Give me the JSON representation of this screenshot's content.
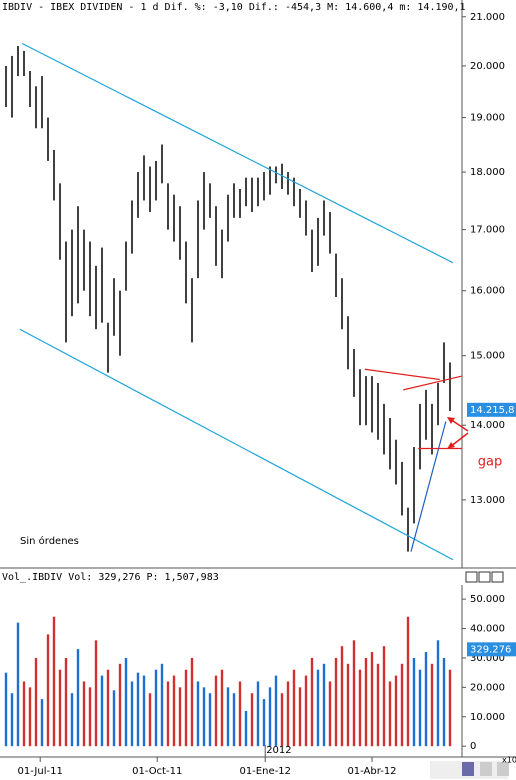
{
  "chart_data": [
    {
      "type": "ohlc",
      "title": "IBDIV - IBEX DIVIDEN - 1 d Dif. %: -3,10 Dif.: -454,3 M: 14.600,4 m: 14.190,1",
      "log_scale": true,
      "color": "#000000",
      "x": [
        1,
        2,
        3,
        4,
        5,
        6,
        7,
        8,
        9,
        10,
        11,
        12,
        13,
        14,
        15,
        16,
        17,
        18,
        19,
        20,
        21,
        22,
        23,
        24,
        25,
        26,
        27,
        28,
        29,
        30,
        31,
        32,
        33,
        34,
        35,
        36,
        37,
        38,
        39,
        40,
        41,
        42,
        43,
        44,
        45,
        46,
        47,
        48,
        49,
        50,
        51,
        52,
        53,
        54,
        55,
        56,
        57,
        58,
        59,
        60,
        61,
        62,
        63,
        64,
        65,
        66,
        67,
        68,
        69,
        70,
        71,
        72,
        73,
        74,
        75
      ],
      "low": [
        19200,
        19000,
        19800,
        19800,
        19200,
        18800,
        18800,
        18200,
        17500,
        16500,
        15200,
        15600,
        15800,
        16000,
        15600,
        15400,
        15500,
        14750,
        15300,
        15000,
        16000,
        16600,
        17200,
        17500,
        17300,
        17500,
        17800,
        17000,
        16800,
        16500,
        15800,
        15200,
        16200,
        17000,
        17200,
        16400,
        16200,
        16800,
        17200,
        17200,
        17400,
        17300,
        17400,
        17500,
        17600,
        17800,
        17700,
        17600,
        17400,
        17200,
        16900,
        16300,
        16400,
        16900,
        16600,
        15900,
        15400,
        14800,
        14400,
        14000,
        14000,
        13900,
        13800,
        13600,
        13400,
        13200,
        12800,
        12350,
        12700,
        13400,
        13800,
        13600,
        14000,
        14600,
        14200
      ],
      "high": [
        20000,
        20200,
        20400,
        20300,
        19900,
        19600,
        19800,
        19000,
        18400,
        17800,
        16800,
        17000,
        17400,
        17000,
        16800,
        16400,
        16700,
        15500,
        16200,
        16000,
        16800,
        17500,
        18000,
        18300,
        18100,
        18200,
        18500,
        17800,
        17600,
        17400,
        16800,
        16200,
        17500,
        18000,
        17800,
        17400,
        17000,
        17600,
        17800,
        17700,
        17900,
        17900,
        17900,
        18000,
        18100,
        18100,
        18150,
        18000,
        17900,
        17700,
        17500,
        17000,
        17200,
        17500,
        17300,
        16600,
        16200,
        15600,
        15100,
        14800,
        14700,
        14700,
        14600,
        14300,
        14100,
        13800,
        13500,
        12900,
        13700,
        14300,
        14500,
        14300,
        14600,
        15200,
        14900
      ],
      "xlim": [
        0,
        77
      ],
      "ylim": [
        12150,
        21100
      ],
      "yticks": [
        {
          "value": 13000,
          "label": "13.000"
        },
        {
          "value": 14000,
          "label": "14.000"
        },
        {
          "value": 15000,
          "label": "15.000"
        },
        {
          "value": 16000,
          "label": "16.000"
        },
        {
          "value": 17000,
          "label": "17.000"
        },
        {
          "value": 18000,
          "label": "18.000"
        },
        {
          "value": 19000,
          "label": "19.000"
        },
        {
          "value": 20000,
          "label": "20.000"
        },
        {
          "value": 21000,
          "label": "21.000"
        }
      ],
      "last_value": {
        "value": 14215.8,
        "label": "14.215,8"
      },
      "trendlines": [
        {
          "x": [
            3.7,
            75.5
          ],
          "y": [
            20450,
            16450
          ],
          "color": "#1aa3d9"
        },
        {
          "x": [
            3.3,
            75.5
          ],
          "y": [
            15400,
            12250
          ],
          "color": "#1aa3d9"
        },
        {
          "x": [
            68.5,
            74.3
          ],
          "y": [
            12350,
            14050
          ],
          "color": "#1f5fbf"
        },
        {
          "x": [
            60.8,
            73.3
          ],
          "y": [
            14800,
            14650
          ],
          "color": "#e02020"
        },
        {
          "x": [
            67.2,
            77
          ],
          "y": [
            14500,
            14700
          ],
          "color": "#e02020"
        },
        {
          "x": [
            69.7,
            77
          ],
          "y": [
            13680,
            13680
          ],
          "color": "#e02020"
        }
      ],
      "annotations": [
        "gap",
        "Sin órdenes"
      ]
    },
    {
      "type": "bar",
      "title": "Vol_.IBDIV Vol: 329,276 P: 1,507,983",
      "up_color": "#1f6fd0",
      "down_color": "#d03030",
      "x": [
        1,
        2,
        3,
        4,
        5,
        6,
        7,
        8,
        9,
        10,
        11,
        12,
        13,
        14,
        15,
        16,
        17,
        18,
        19,
        20,
        21,
        22,
        23,
        24,
        25,
        26,
        27,
        28,
        29,
        30,
        31,
        32,
        33,
        34,
        35,
        36,
        37,
        38,
        39,
        40,
        41,
        42,
        43,
        44,
        45,
        46,
        47,
        48,
        49,
        50,
        51,
        52,
        53,
        54,
        55,
        56,
        57,
        58,
        59,
        60,
        61,
        62,
        63,
        64,
        65,
        66,
        67,
        68,
        69,
        70,
        71,
        72,
        73,
        74,
        75
      ],
      "values": [
        25000,
        18000,
        42000,
        22000,
        20000,
        30000,
        16000,
        38000,
        44000,
        26000,
        30000,
        18000,
        33000,
        22000,
        20000,
        36000,
        24000,
        26000,
        19000,
        28000,
        30000,
        22000,
        25000,
        24000,
        18000,
        26000,
        28000,
        22000,
        24000,
        20000,
        26000,
        30000,
        22000,
        20000,
        18000,
        24000,
        26000,
        20000,
        18000,
        22000,
        12000,
        18000,
        22000,
        16000,
        20000,
        24000,
        18000,
        22000,
        26000,
        20000,
        24000,
        30000,
        26000,
        28000,
        22000,
        30000,
        34000,
        28000,
        36000,
        26000,
        30000,
        32000,
        28000,
        34000,
        22000,
        24000,
        28000,
        44000,
        30000,
        26000,
        32000,
        28000,
        36000,
        30000,
        26000
      ],
      "xlim": [
        0,
        77
      ],
      "ylim": [
        -3000,
        54800
      ],
      "yticks": [
        0,
        {
          "value": 10000,
          "label": "10.000"
        },
        {
          "value": 20000,
          "label": "20.000"
        },
        {
          "value": 30000,
          "label": "30.000"
        },
        {
          "value": 40000,
          "label": "40.000"
        },
        {
          "value": 50000,
          "label": "50.000"
        }
      ],
      "unit_label": "x10",
      "last_value": {
        "value": 32927.6,
        "label": "329.276"
      },
      "xticks": [
        {
          "value": 6.7,
          "label": "01-Jul-11"
        },
        {
          "value": 26.2,
          "label": "01-Oct-11"
        },
        {
          "value": 44.2,
          "label": "01-Ene-12"
        },
        {
          "value": 62,
          "label": "01-Abr-12"
        }
      ],
      "year_label": {
        "value": 44.2,
        "label": "2012"
      }
    }
  ]
}
